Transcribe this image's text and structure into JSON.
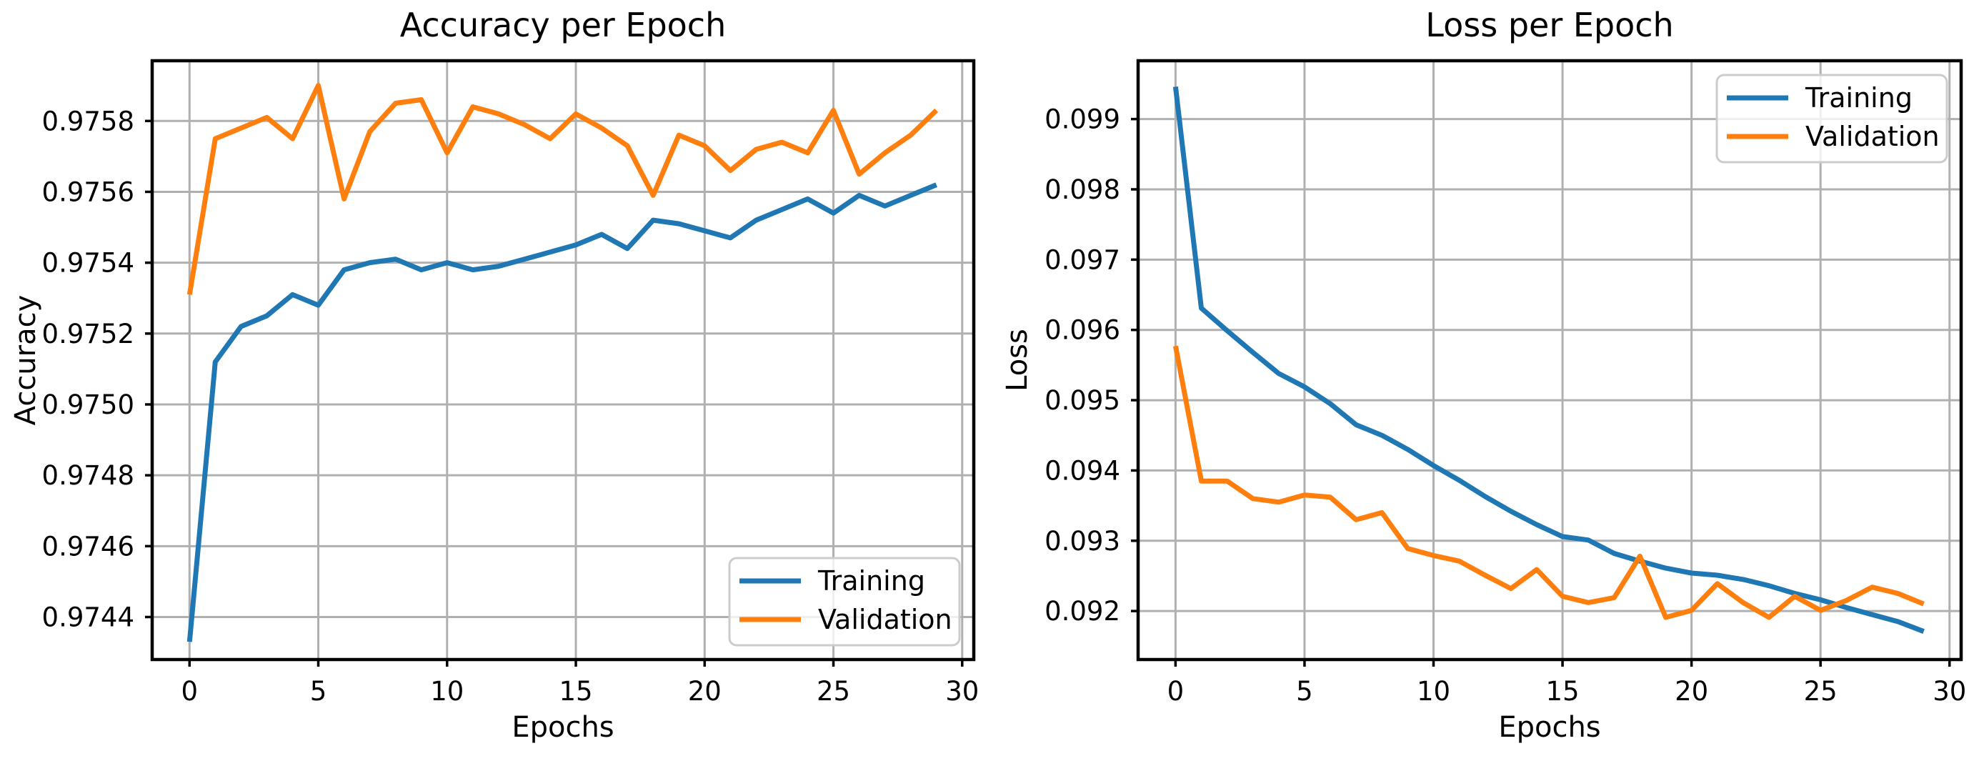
{
  "figure": {
    "background": "#ffffff",
    "grid_color": "#b0b0b0",
    "spine_color": "#000000",
    "legend_border_color": "#cccccc",
    "series_colors": {
      "training": "#1f77b4",
      "validation": "#ff7f0e"
    }
  },
  "chart_data": [
    {
      "type": "line",
      "title": "Accuracy per Epoch",
      "xlabel": "Epochs",
      "ylabel": "Accuracy",
      "grid": true,
      "legend_position": "lower right",
      "xlim": [
        -1.45,
        30.45
      ],
      "ylim": [
        0.97428,
        0.97597
      ],
      "xticks": [
        "0",
        "5",
        "10",
        "15",
        "20",
        "25",
        "30"
      ],
      "xtick_values": [
        0,
        5,
        10,
        15,
        20,
        25,
        30
      ],
      "yticks": [
        "0.9744",
        "0.9746",
        "0.9748",
        "0.9750",
        "0.9752",
        "0.9754",
        "0.9756",
        "0.9758"
      ],
      "ytick_values": [
        0.9744,
        0.9746,
        0.9748,
        0.975,
        0.9752,
        0.9754,
        0.9756,
        0.9758
      ],
      "x": [
        0,
        1,
        2,
        3,
        4,
        5,
        6,
        7,
        8,
        9,
        10,
        11,
        12,
        13,
        14,
        15,
        16,
        17,
        18,
        19,
        20,
        21,
        22,
        23,
        24,
        25,
        26,
        27,
        28,
        29
      ],
      "series": [
        {
          "name": "Training",
          "color_key": "training",
          "values": [
            0.97433,
            0.97512,
            0.97522,
            0.97525,
            0.97531,
            0.97528,
            0.97538,
            0.9754,
            0.97541,
            0.97538,
            0.9754,
            0.97538,
            0.97539,
            0.97541,
            0.97543,
            0.97545,
            0.97548,
            0.97544,
            0.97552,
            0.97551,
            0.97549,
            0.97547,
            0.97552,
            0.97555,
            0.97558,
            0.97554,
            0.97559,
            0.97556,
            0.97559,
            0.97562
          ]
        },
        {
          "name": "Validation",
          "color_key": "validation",
          "values": [
            0.97531,
            0.97575,
            0.97578,
            0.97581,
            0.97575,
            0.9759,
            0.97558,
            0.97577,
            0.97585,
            0.97586,
            0.97571,
            0.97584,
            0.97582,
            0.97579,
            0.97575,
            0.97582,
            0.97578,
            0.97573,
            0.97559,
            0.97576,
            0.97573,
            0.97566,
            0.97572,
            0.97574,
            0.97571,
            0.97583,
            0.97565,
            0.97571,
            0.97576,
            0.97583
          ]
        }
      ]
    },
    {
      "type": "line",
      "title": "Loss per Epoch",
      "xlabel": "Epochs",
      "ylabel": "Loss",
      "grid": true,
      "legend_position": "upper right",
      "xlim": [
        -1.45,
        30.45
      ],
      "ylim": [
        0.09131,
        0.09983
      ],
      "xticks": [
        "0",
        "5",
        "10",
        "15",
        "20",
        "25",
        "30"
      ],
      "xtick_values": [
        0,
        5,
        10,
        15,
        20,
        25,
        30
      ],
      "yticks": [
        "0.092",
        "0.093",
        "0.094",
        "0.095",
        "0.096",
        "0.097",
        "0.098",
        "0.099"
      ],
      "ytick_values": [
        0.092,
        0.093,
        0.094,
        0.095,
        0.096,
        0.097,
        0.098,
        0.099
      ],
      "x": [
        0,
        1,
        2,
        3,
        4,
        5,
        6,
        7,
        8,
        9,
        10,
        11,
        12,
        13,
        14,
        15,
        16,
        17,
        18,
        19,
        20,
        21,
        22,
        23,
        24,
        25,
        26,
        27,
        28,
        29
      ],
      "series": [
        {
          "name": "Training",
          "color_key": "training",
          "values": [
            0.09946,
            0.09631,
            0.09599,
            0.09568,
            0.09538,
            0.09519,
            0.09495,
            0.09465,
            0.0945,
            0.0943,
            0.09407,
            0.09386,
            0.09363,
            0.09342,
            0.09323,
            0.09306,
            0.09301,
            0.09282,
            0.09271,
            0.09261,
            0.09254,
            0.09251,
            0.09245,
            0.09236,
            0.09225,
            0.09216,
            0.09205,
            0.09195,
            0.09185,
            0.09171
          ]
        },
        {
          "name": "Validation",
          "color_key": "validation",
          "values": [
            0.09577,
            0.09385,
            0.09385,
            0.0936,
            0.09355,
            0.09365,
            0.09362,
            0.0933,
            0.0934,
            0.09289,
            0.09279,
            0.09271,
            0.09251,
            0.09232,
            0.09259,
            0.09221,
            0.09212,
            0.09219,
            0.09278,
            0.09191,
            0.09201,
            0.09239,
            0.09212,
            0.09191,
            0.09221,
            0.09201,
            0.09215,
            0.09234,
            0.09225,
            0.0921
          ]
        }
      ]
    }
  ]
}
